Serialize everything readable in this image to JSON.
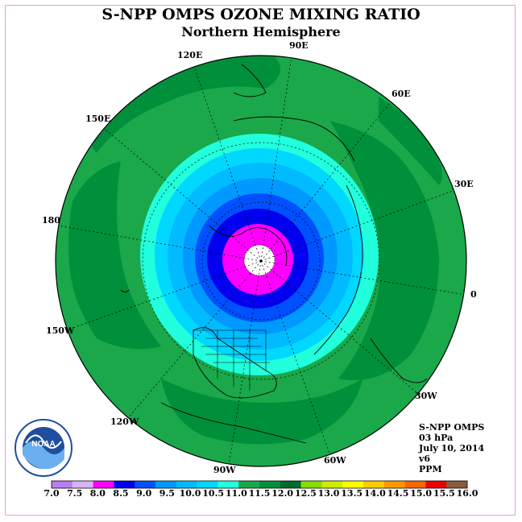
{
  "title": "S-NPP OMPS OZONE MIXING RATIO",
  "subtitle": "Northern Hemisphere",
  "longitude_labels": {
    "lon_90e": "90E",
    "lon_60e": "60E",
    "lon_30e": "30E",
    "lon_0": "0",
    "lon_30w": "30W",
    "lon_60w": "60W",
    "lon_90w": "90W",
    "lon_120w": "120W",
    "lon_150w": "150W",
    "lon_180": "180",
    "lon_150e": "150E",
    "lon_120e": "120E"
  },
  "info": {
    "instrument": "S-NPP OMPS",
    "level": "03 hPa",
    "date": "July 10, 2014",
    "version": "v6",
    "units": "PPM"
  },
  "logo": {
    "icon": "noaa-logo-icon",
    "text": "NOAA"
  },
  "colorbar": {
    "labels": [
      "7.0",
      "7.5",
      "8.0",
      "8.5",
      "9.0",
      "9.5",
      "10.0",
      "10.5",
      "11.0",
      "11.5",
      "12.0",
      "12.5",
      "13.0",
      "13.5",
      "14.0",
      "14.5",
      "15.0",
      "15.5",
      "16.0"
    ],
    "colors": [
      "#b97ff0",
      "#d9b3f5",
      "#ff00ff",
      "#0000ee",
      "#0050ff",
      "#0099ff",
      "#00bbff",
      "#00d8ff",
      "#22ffdd",
      "#1aa84a",
      "#008f3a",
      "#006b2a",
      "#88dd00",
      "#ccee00",
      "#ffff00",
      "#ffcc00",
      "#ff9900",
      "#ff6600",
      "#ee0000",
      "#8b5a3c"
    ]
  },
  "field": {
    "bands": [
      {
        "range": "11.0-11.5",
        "color": "#1aa84a"
      },
      {
        "range": "11.5-12.0",
        "color": "#008f3a"
      },
      {
        "range": "10.5-11.0",
        "color": "#22ffdd"
      },
      {
        "range": "10.0-10.5",
        "color": "#00d8ff"
      },
      {
        "range": "9.5-10.0",
        "color": "#00bbff"
      },
      {
        "range": "9.0-9.5",
        "color": "#0099ff"
      },
      {
        "range": "8.5-9.0",
        "color": "#0050ff"
      },
      {
        "range": "8.0-8.5",
        "color": "#0000ee"
      },
      {
        "range": "7.5-8.0",
        "color": "#ff00ff"
      }
    ],
    "no_data_fill": "#ffffff"
  }
}
